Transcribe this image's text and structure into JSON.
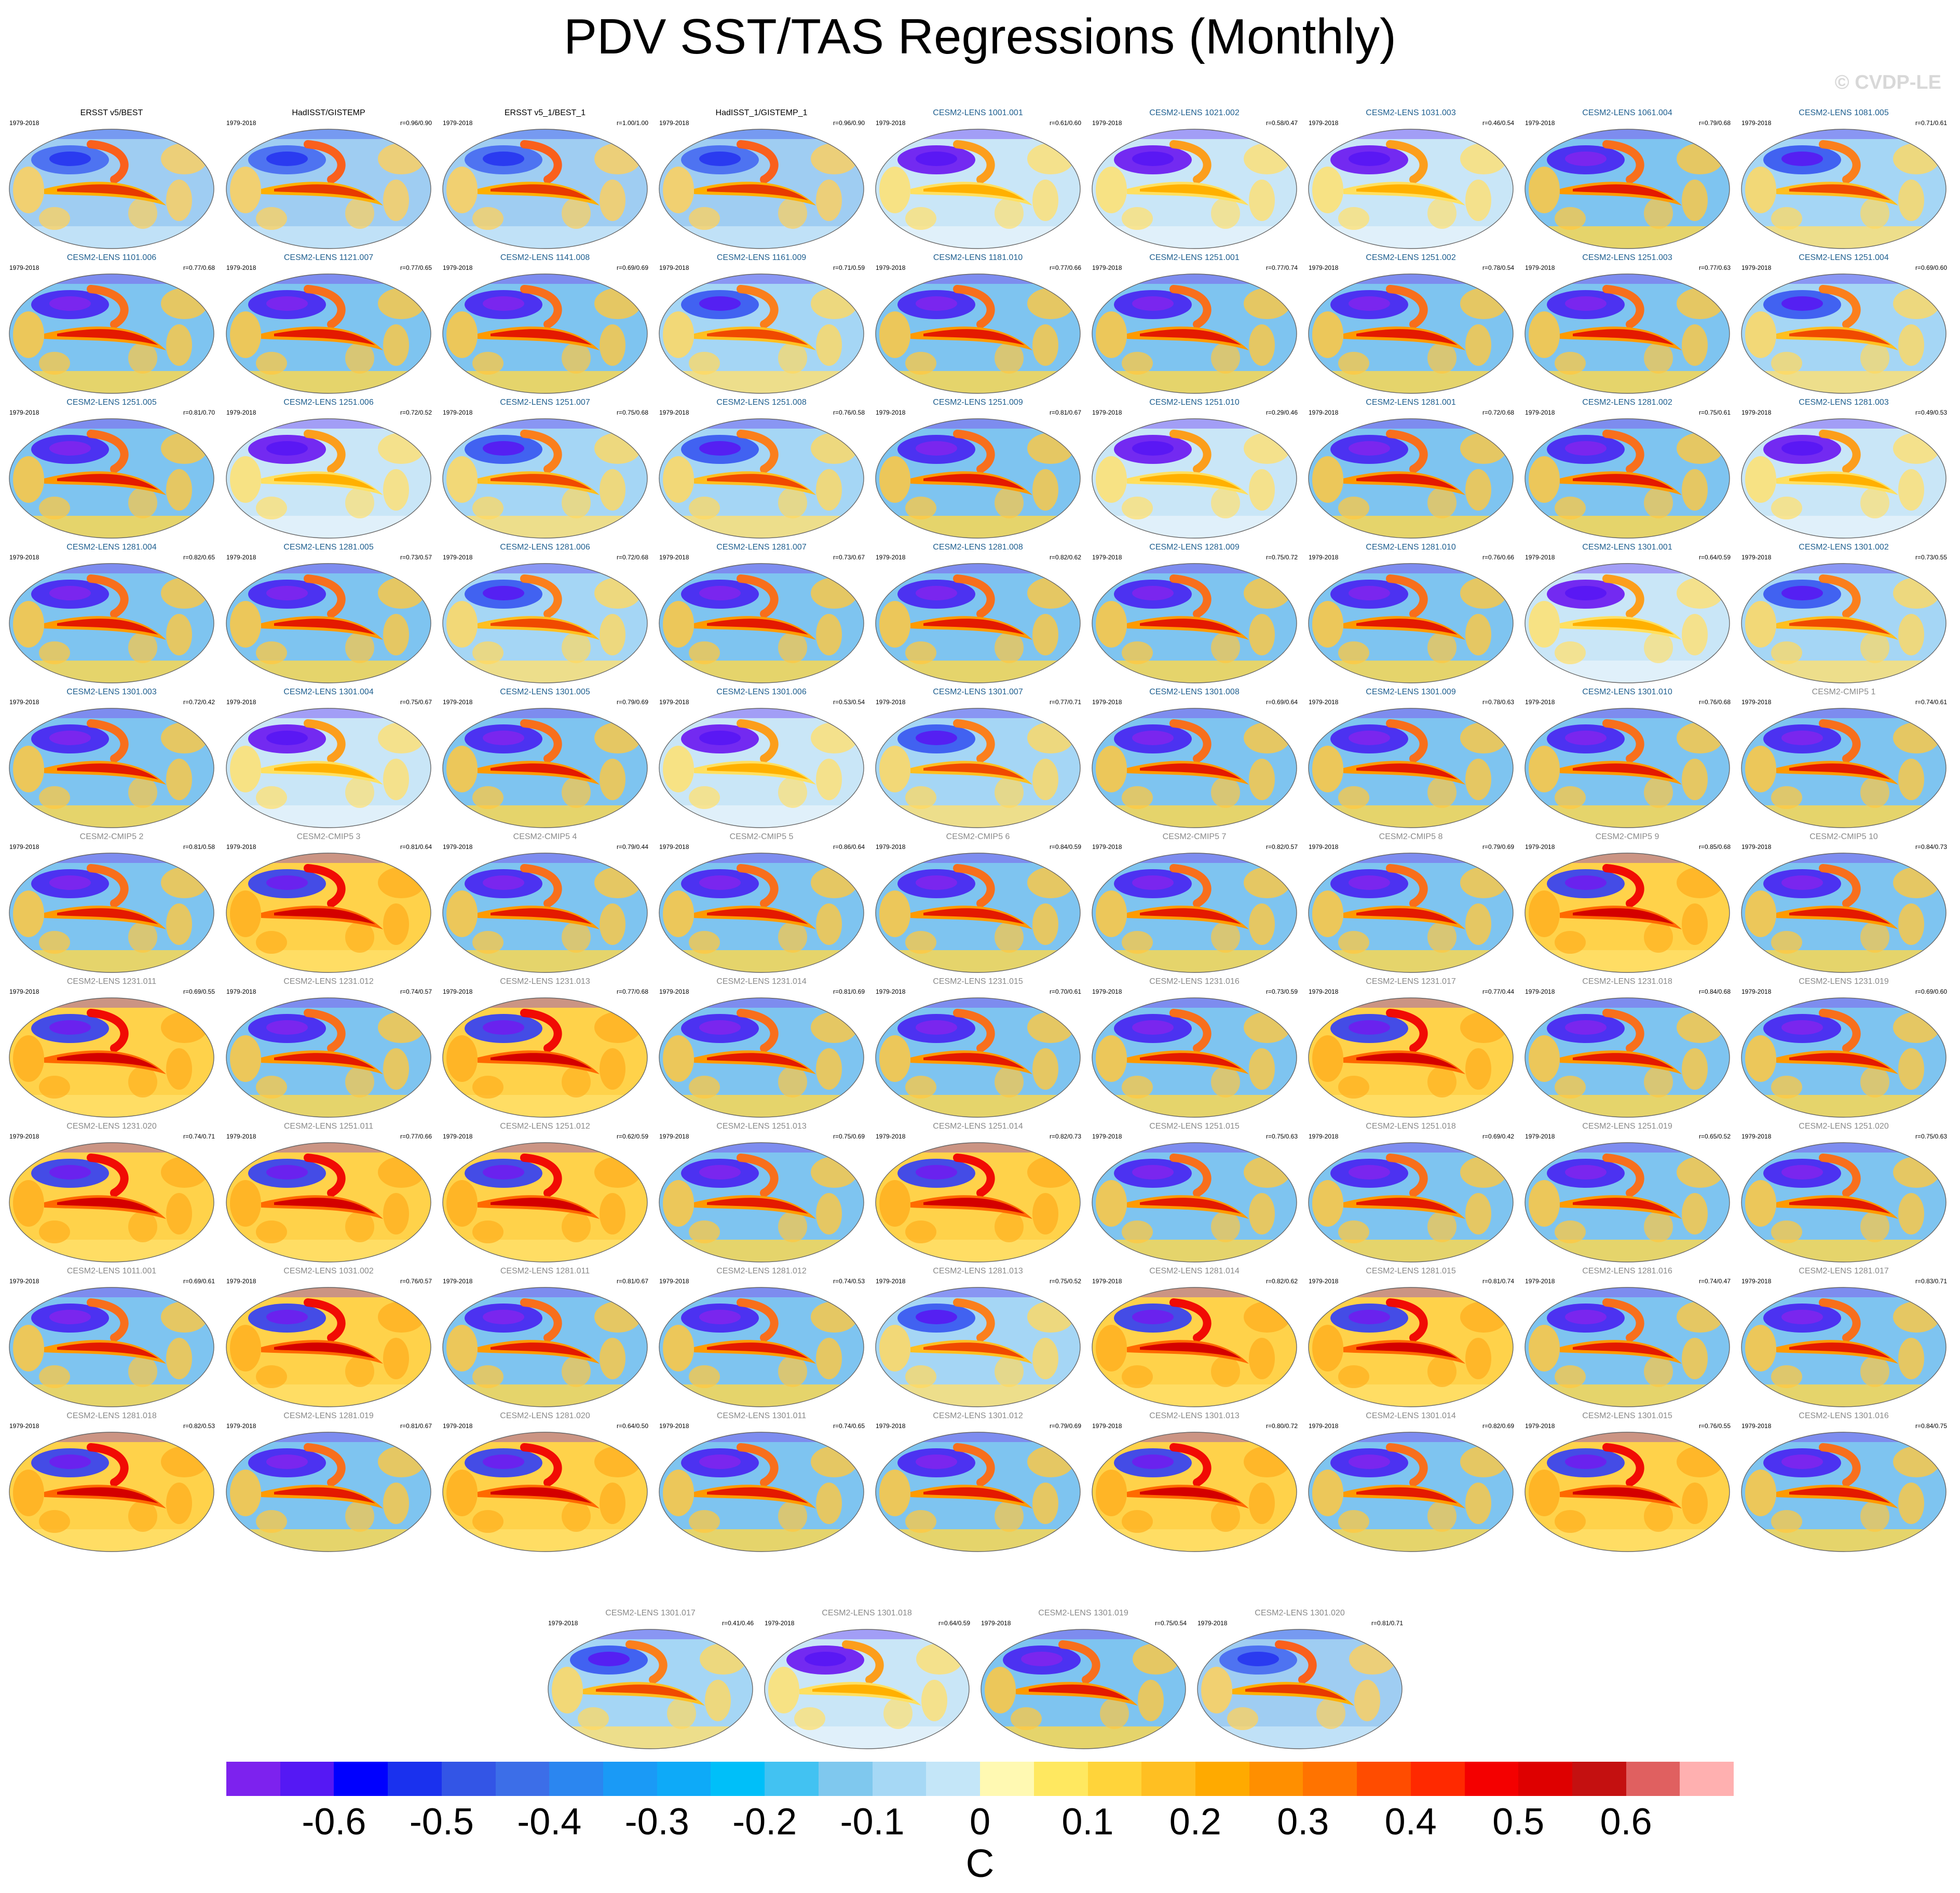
{
  "title": "PDV SST/TAS Regressions (Monthly)",
  "watermark": "© CVDP-LE",
  "panels": [
    {
      "title": "ERSST v5/BEST",
      "period": "1979-2018",
      "corr": "",
      "style": "obs",
      "pattern": "obs"
    },
    {
      "title": "HadISST/GISTEMP",
      "period": "1979-2018",
      "corr": "r=0.96/0.90",
      "style": "obs",
      "pattern": "obs"
    },
    {
      "title": "ERSST v5_1/BEST_1",
      "period": "1979-2018",
      "corr": "r=1.00/1.00",
      "style": "obs",
      "pattern": "obs"
    },
    {
      "title": "HadISST_1/GISTEMP_1",
      "period": "1979-2018",
      "corr": "r=0.96/0.90",
      "style": "obs",
      "pattern": "obs"
    },
    {
      "title": "CESM2-LENS 1001.001",
      "period": "1979-2018",
      "corr": "r=0.61/0.60",
      "style": "lens",
      "pattern": "cold"
    },
    {
      "title": "CESM2-LENS 1021.002",
      "period": "1979-2018",
      "corr": "r=0.58/0.47",
      "style": "lens",
      "pattern": "cold"
    },
    {
      "title": "CESM2-LENS 1031.003",
      "period": "1979-2018",
      "corr": "r=0.46/0.54",
      "style": "lens",
      "pattern": "cold"
    },
    {
      "title": "CESM2-LENS 1061.004",
      "period": "1979-2018",
      "corr": "r=0.79/0.68",
      "style": "lens",
      "pattern": "warm"
    },
    {
      "title": "CESM2-LENS 1081.005",
      "period": "1979-2018",
      "corr": "r=0.71/0.61",
      "style": "lens",
      "pattern": "mix"
    },
    {
      "title": "CESM2-LENS 1101.006",
      "period": "1979-2018",
      "corr": "r=0.77/0.68",
      "style": "lens",
      "pattern": "warm"
    },
    {
      "title": "CESM2-LENS 1121.007",
      "period": "1979-2018",
      "corr": "r=0.77/0.65",
      "style": "lens",
      "pattern": "warm"
    },
    {
      "title": "CESM2-LENS 1141.008",
      "period": "1979-2018",
      "corr": "r=0.69/0.69",
      "style": "lens",
      "pattern": "warm"
    },
    {
      "title": "CESM2-LENS 1161.009",
      "period": "1979-2018",
      "corr": "r=0.71/0.59",
      "style": "lens",
      "pattern": "mix"
    },
    {
      "title": "CESM2-LENS 1181.010",
      "period": "1979-2018",
      "corr": "r=0.77/0.66",
      "style": "lens",
      "pattern": "warm"
    },
    {
      "title": "CESM2-LENS 1251.001",
      "period": "1979-2018",
      "corr": "r=0.77/0.74",
      "style": "lens",
      "pattern": "warm"
    },
    {
      "title": "CESM2-LENS 1251.002",
      "period": "1979-2018",
      "corr": "r=0.78/0.54",
      "style": "lens",
      "pattern": "warm"
    },
    {
      "title": "CESM2-LENS 1251.003",
      "period": "1979-2018",
      "corr": "r=0.77/0.63",
      "style": "lens",
      "pattern": "warm"
    },
    {
      "title": "CESM2-LENS 1251.004",
      "period": "1979-2018",
      "corr": "r=0.69/0.60",
      "style": "lens",
      "pattern": "mix"
    },
    {
      "title": "CESM2-LENS 1251.005",
      "period": "1979-2018",
      "corr": "r=0.81/0.70",
      "style": "lens",
      "pattern": "warm"
    },
    {
      "title": "CESM2-LENS 1251.006",
      "period": "1979-2018",
      "corr": "r=0.72/0.52",
      "style": "lens",
      "pattern": "cold"
    },
    {
      "title": "CESM2-LENS 1251.007",
      "period": "1979-2018",
      "corr": "r=0.75/0.68",
      "style": "lens",
      "pattern": "mix"
    },
    {
      "title": "CESM2-LENS 1251.008",
      "period": "1979-2018",
      "corr": "r=0.76/0.58",
      "style": "lens",
      "pattern": "mix"
    },
    {
      "title": "CESM2-LENS 1251.009",
      "period": "1979-2018",
      "corr": "r=0.81/0.67",
      "style": "lens",
      "pattern": "warm"
    },
    {
      "title": "CESM2-LENS 1251.010",
      "period": "1979-2018",
      "corr": "r=0.29/0.46",
      "style": "lens",
      "pattern": "cold"
    },
    {
      "title": "CESM2-LENS 1281.001",
      "period": "1979-2018",
      "corr": "r=0.72/0.68",
      "style": "lens",
      "pattern": "warm"
    },
    {
      "title": "CESM2-LENS 1281.002",
      "period": "1979-2018",
      "corr": "r=0.75/0.61",
      "style": "lens",
      "pattern": "warm"
    },
    {
      "title": "CESM2-LENS 1281.003",
      "period": "1979-2018",
      "corr": "r=0.49/0.53",
      "style": "lens",
      "pattern": "cold"
    },
    {
      "title": "CESM2-LENS 1281.004",
      "period": "1979-2018",
      "corr": "r=0.82/0.65",
      "style": "lens",
      "pattern": "warm"
    },
    {
      "title": "CESM2-LENS 1281.005",
      "period": "1979-2018",
      "corr": "r=0.73/0.57",
      "style": "lens",
      "pattern": "warm"
    },
    {
      "title": "CESM2-LENS 1281.006",
      "period": "1979-2018",
      "corr": "r=0.72/0.68",
      "style": "lens",
      "pattern": "mix"
    },
    {
      "title": "CESM2-LENS 1281.007",
      "period": "1979-2018",
      "corr": "r=0.73/0.67",
      "style": "lens",
      "pattern": "warm"
    },
    {
      "title": "CESM2-LENS 1281.008",
      "period": "1979-2018",
      "corr": "r=0.82/0.62",
      "style": "lens",
      "pattern": "warm"
    },
    {
      "title": "CESM2-LENS 1281.009",
      "period": "1979-2018",
      "corr": "r=0.75/0.72",
      "style": "lens",
      "pattern": "warm"
    },
    {
      "title": "CESM2-LENS 1281.010",
      "period": "1979-2018",
      "corr": "r=0.76/0.66",
      "style": "lens",
      "pattern": "warm"
    },
    {
      "title": "CESM2-LENS 1301.001",
      "period": "1979-2018",
      "corr": "r=0.64/0.59",
      "style": "lens",
      "pattern": "cold"
    },
    {
      "title": "CESM2-LENS 1301.002",
      "period": "1979-2018",
      "corr": "r=0.73/0.55",
      "style": "lens",
      "pattern": "mix"
    },
    {
      "title": "CESM2-LENS 1301.003",
      "period": "1979-2018",
      "corr": "r=0.72/0.42",
      "style": "lens",
      "pattern": "warm"
    },
    {
      "title": "CESM2-LENS 1301.004",
      "period": "1979-2018",
      "corr": "r=0.75/0.67",
      "style": "lens",
      "pattern": "cold"
    },
    {
      "title": "CESM2-LENS 1301.005",
      "period": "1979-2018",
      "corr": "r=0.79/0.69",
      "style": "lens",
      "pattern": "warm"
    },
    {
      "title": "CESM2-LENS 1301.006",
      "period": "1979-2018",
      "corr": "r=0.53/0.54",
      "style": "lens",
      "pattern": "cold"
    },
    {
      "title": "CESM2-LENS 1301.007",
      "period": "1979-2018",
      "corr": "r=0.77/0.71",
      "style": "lens",
      "pattern": "mix"
    },
    {
      "title": "CESM2-LENS 1301.008",
      "period": "1979-2018",
      "corr": "r=0.69/0.64",
      "style": "lens",
      "pattern": "warm"
    },
    {
      "title": "CESM2-LENS 1301.009",
      "period": "1979-2018",
      "corr": "r=0.78/0.63",
      "style": "lens",
      "pattern": "warm"
    },
    {
      "title": "CESM2-LENS 1301.010",
      "period": "1979-2018",
      "corr": "r=0.76/0.68",
      "style": "lens",
      "pattern": "warm"
    },
    {
      "title": "CESM2-CMIP5 1",
      "period": "1979-2018",
      "corr": "r=0.74/0.61",
      "style": "gray",
      "pattern": "warm"
    },
    {
      "title": "CESM2-CMIP5 2",
      "period": "1979-2018",
      "corr": "r=0.81/0.58",
      "style": "gray",
      "pattern": "warm"
    },
    {
      "title": "CESM2-CMIP5 3",
      "period": "1979-2018",
      "corr": "r=0.81/0.64",
      "style": "gray",
      "pattern": "hot"
    },
    {
      "title": "CESM2-CMIP5 4",
      "period": "1979-2018",
      "corr": "r=0.79/0.44",
      "style": "gray",
      "pattern": "warm"
    },
    {
      "title": "CESM2-CMIP5 5",
      "period": "1979-2018",
      "corr": "r=0.86/0.64",
      "style": "gray",
      "pattern": "warm"
    },
    {
      "title": "CESM2-CMIP5 6",
      "period": "1979-2018",
      "corr": "r=0.84/0.59",
      "style": "gray",
      "pattern": "warm"
    },
    {
      "title": "CESM2-CMIP5 7",
      "period": "1979-2018",
      "corr": "r=0.82/0.57",
      "style": "gray",
      "pattern": "warm"
    },
    {
      "title": "CESM2-CMIP5 8",
      "period": "1979-2018",
      "corr": "r=0.79/0.69",
      "style": "gray",
      "pattern": "warm"
    },
    {
      "title": "CESM2-CMIP5 9",
      "period": "1979-2018",
      "corr": "r=0.85/0.68",
      "style": "gray",
      "pattern": "hot"
    },
    {
      "title": "CESM2-CMIP5 10",
      "period": "1979-2018",
      "corr": "r=0.84/0.73",
      "style": "gray",
      "pattern": "warm"
    },
    {
      "title": "CESM2-LENS 1231.011",
      "period": "1979-2018",
      "corr": "r=0.69/0.55",
      "style": "gray",
      "pattern": "hot"
    },
    {
      "title": "CESM2-LENS 1231.012",
      "period": "1979-2018",
      "corr": "r=0.74/0.57",
      "style": "gray",
      "pattern": "warm"
    },
    {
      "title": "CESM2-LENS 1231.013",
      "period": "1979-2018",
      "corr": "r=0.77/0.68",
      "style": "gray",
      "pattern": "hot"
    },
    {
      "title": "CESM2-LENS 1231.014",
      "period": "1979-2018",
      "corr": "r=0.81/0.69",
      "style": "gray",
      "pattern": "warm"
    },
    {
      "title": "CESM2-LENS 1231.015",
      "period": "1979-2018",
      "corr": "r=0.70/0.61",
      "style": "gray",
      "pattern": "warm"
    },
    {
      "title": "CESM2-LENS 1231.016",
      "period": "1979-2018",
      "corr": "r=0.73/0.59",
      "style": "gray",
      "pattern": "warm"
    },
    {
      "title": "CESM2-LENS 1231.017",
      "period": "1979-2018",
      "corr": "r=0.77/0.44",
      "style": "gray",
      "pattern": "hot"
    },
    {
      "title": "CESM2-LENS 1231.018",
      "period": "1979-2018",
      "corr": "r=0.84/0.68",
      "style": "gray",
      "pattern": "warm"
    },
    {
      "title": "CESM2-LENS 1231.019",
      "period": "1979-2018",
      "corr": "r=0.69/0.60",
      "style": "gray",
      "pattern": "warm"
    },
    {
      "title": "CESM2-LENS 1231.020",
      "period": "1979-2018",
      "corr": "r=0.74/0.71",
      "style": "gray",
      "pattern": "hot"
    },
    {
      "title": "CESM2-LENS 1251.011",
      "period": "1979-2018",
      "corr": "r=0.77/0.66",
      "style": "gray",
      "pattern": "hot"
    },
    {
      "title": "CESM2-LENS 1251.012",
      "period": "1979-2018",
      "corr": "r=0.62/0.59",
      "style": "gray",
      "pattern": "hot"
    },
    {
      "title": "CESM2-LENS 1251.013",
      "period": "1979-2018",
      "corr": "r=0.75/0.69",
      "style": "gray",
      "pattern": "warm"
    },
    {
      "title": "CESM2-LENS 1251.014",
      "period": "1979-2018",
      "corr": "r=0.82/0.73",
      "style": "gray",
      "pattern": "hot"
    },
    {
      "title": "CESM2-LENS 1251.015",
      "period": "1979-2018",
      "corr": "r=0.75/0.63",
      "style": "gray",
      "pattern": "warm"
    },
    {
      "title": "CESM2-LENS 1251.018",
      "period": "1979-2018",
      "corr": "r=0.69/0.42",
      "style": "gray",
      "pattern": "warm"
    },
    {
      "title": "CESM2-LENS 1251.019",
      "period": "1979-2018",
      "corr": "r=0.65/0.52",
      "style": "gray",
      "pattern": "warm"
    },
    {
      "title": "CESM2-LENS 1251.020",
      "period": "1979-2018",
      "corr": "r=0.75/0.63",
      "style": "gray",
      "pattern": "warm"
    },
    {
      "title": "CESM2-LENS 1011.001",
      "period": "1979-2018",
      "corr": "r=0.69/0.61",
      "style": "gray",
      "pattern": "warm"
    },
    {
      "title": "CESM2-LENS 1031.002",
      "period": "1979-2018",
      "corr": "r=0.76/0.57",
      "style": "gray",
      "pattern": "hot"
    },
    {
      "title": "CESM2-LENS 1281.011",
      "period": "1979-2018",
      "corr": "r=0.81/0.67",
      "style": "gray",
      "pattern": "warm"
    },
    {
      "title": "CESM2-LENS 1281.012",
      "period": "1979-2018",
      "corr": "r=0.74/0.53",
      "style": "gray",
      "pattern": "warm"
    },
    {
      "title": "CESM2-LENS 1281.013",
      "period": "1979-2018",
      "corr": "r=0.75/0.52",
      "style": "gray",
      "pattern": "mix"
    },
    {
      "title": "CESM2-LENS 1281.014",
      "period": "1979-2018",
      "corr": "r=0.82/0.62",
      "style": "gray",
      "pattern": "hot"
    },
    {
      "title": "CESM2-LENS 1281.015",
      "period": "1979-2018",
      "corr": "r=0.81/0.74",
      "style": "gray",
      "pattern": "hot"
    },
    {
      "title": "CESM2-LENS 1281.016",
      "period": "1979-2018",
      "corr": "r=0.74/0.47",
      "style": "gray",
      "pattern": "warm"
    },
    {
      "title": "CESM2-LENS 1281.017",
      "period": "1979-2018",
      "corr": "r=0.83/0.71",
      "style": "gray",
      "pattern": "warm"
    },
    {
      "title": "CESM2-LENS 1281.018",
      "period": "1979-2018",
      "corr": "r=0.82/0.53",
      "style": "gray",
      "pattern": "hot"
    },
    {
      "title": "CESM2-LENS 1281.019",
      "period": "1979-2018",
      "corr": "r=0.81/0.67",
      "style": "gray",
      "pattern": "warm"
    },
    {
      "title": "CESM2-LENS 1281.020",
      "period": "1979-2018",
      "corr": "r=0.64/0.50",
      "style": "gray",
      "pattern": "hot"
    },
    {
      "title": "CESM2-LENS 1301.011",
      "period": "1979-2018",
      "corr": "r=0.74/0.65",
      "style": "gray",
      "pattern": "warm"
    },
    {
      "title": "CESM2-LENS 1301.012",
      "period": "1979-2018",
      "corr": "r=0.79/0.69",
      "style": "gray",
      "pattern": "warm"
    },
    {
      "title": "CESM2-LENS 1301.013",
      "period": "1979-2018",
      "corr": "r=0.80/0.72",
      "style": "gray",
      "pattern": "hot"
    },
    {
      "title": "CESM2-LENS 1301.014",
      "period": "1979-2018",
      "corr": "r=0.82/0.69",
      "style": "gray",
      "pattern": "warm"
    },
    {
      "title": "CESM2-LENS 1301.015",
      "period": "1979-2018",
      "corr": "r=0.76/0.55",
      "style": "gray",
      "pattern": "hot"
    },
    {
      "title": "CESM2-LENS 1301.016",
      "period": "1979-2018",
      "corr": "r=0.84/0.75",
      "style": "gray",
      "pattern": "warm"
    },
    {
      "title": "CESM2-LENS 1301.017",
      "period": "1979-2018",
      "corr": "r=0.41/0.46",
      "style": "gray",
      "pattern": "mix"
    },
    {
      "title": "CESM2-LENS 1301.018",
      "period": "1979-2018",
      "corr": "r=0.64/0.59",
      "style": "gray",
      "pattern": "cold"
    },
    {
      "title": "CESM2-LENS 1301.019",
      "period": "1979-2018",
      "corr": "r=0.75/0.54",
      "style": "gray",
      "pattern": "warm"
    },
    {
      "title": "CESM2-LENS 1301.020",
      "period": "1979-2018",
      "corr": "r=0.81/0.71",
      "style": "gray",
      "pattern": "obs"
    }
  ],
  "colorbar": {
    "colors": [
      "#7d22ee",
      "#5518f4",
      "#0000ff",
      "#1a31ee",
      "#3355e6",
      "#3c6ee8",
      "#2b86f0",
      "#1a9af6",
      "#0eaaf8",
      "#00bff9",
      "#42c2f2",
      "#7fc8ee",
      "#a6d8f5",
      "#c4e6f8",
      "#fff9b2",
      "#ffe860",
      "#ffd43a",
      "#ffbf22",
      "#ffaa00",
      "#ff8f00",
      "#ff7300",
      "#ff4c00",
      "#ff2900",
      "#f40000",
      "#de0000",
      "#c41010",
      "#e06060",
      "#ffb0b0"
    ],
    "tick_labels": [
      "-0.6",
      "-0.5",
      "-0.4",
      "-0.3",
      "-0.2",
      "-0.1",
      "0",
      "0.1",
      "0.2",
      "0.3",
      "0.4",
      "0.5",
      "0.6"
    ],
    "units": "C"
  }
}
